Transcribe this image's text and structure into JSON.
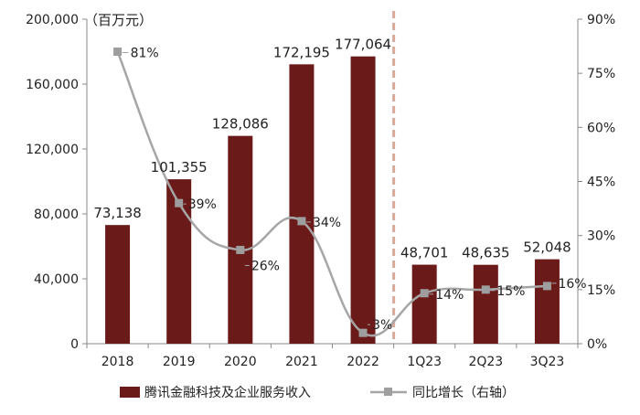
{
  "chart_data": {
    "type": "bar",
    "unit_label": "（百万元）",
    "categories": [
      "2018",
      "2019",
      "2020",
      "2021",
      "2022",
      "1Q23",
      "2Q23",
      "3Q23"
    ],
    "series": [
      {
        "name": "腾讯金融科技及企业服务收入",
        "type": "bar",
        "axis": "left",
        "color": "#6B1A1A",
        "values": [
          73138,
          101355,
          128086,
          172195,
          177064,
          48701,
          48635,
          52048
        ],
        "labels": [
          "73,138",
          "101,355",
          "128,086",
          "172,195",
          "177,064",
          "48,701",
          "48,635",
          "52,048"
        ]
      },
      {
        "name": "同比增长（右轴）",
        "type": "line",
        "axis": "right",
        "color": "#A6A6A6",
        "values": [
          81,
          39,
          26,
          34,
          3,
          14,
          15,
          16
        ],
        "labels": [
          "81%",
          "39%",
          "26%",
          "34%",
          "3%",
          "14%",
          "15%",
          "16%"
        ]
      }
    ],
    "left_axis": {
      "min": 0,
      "max": 200000,
      "ticks": [
        "0",
        "40,000",
        "80,000",
        "120,000",
        "160,000",
        "200,000"
      ]
    },
    "right_axis": {
      "min": 0,
      "max": 90,
      "ticks": [
        "0%",
        "15%",
        "30%",
        "45%",
        "60%",
        "75%",
        "90%"
      ]
    },
    "divider_after_category": "2022",
    "legend_position": "bottom"
  }
}
